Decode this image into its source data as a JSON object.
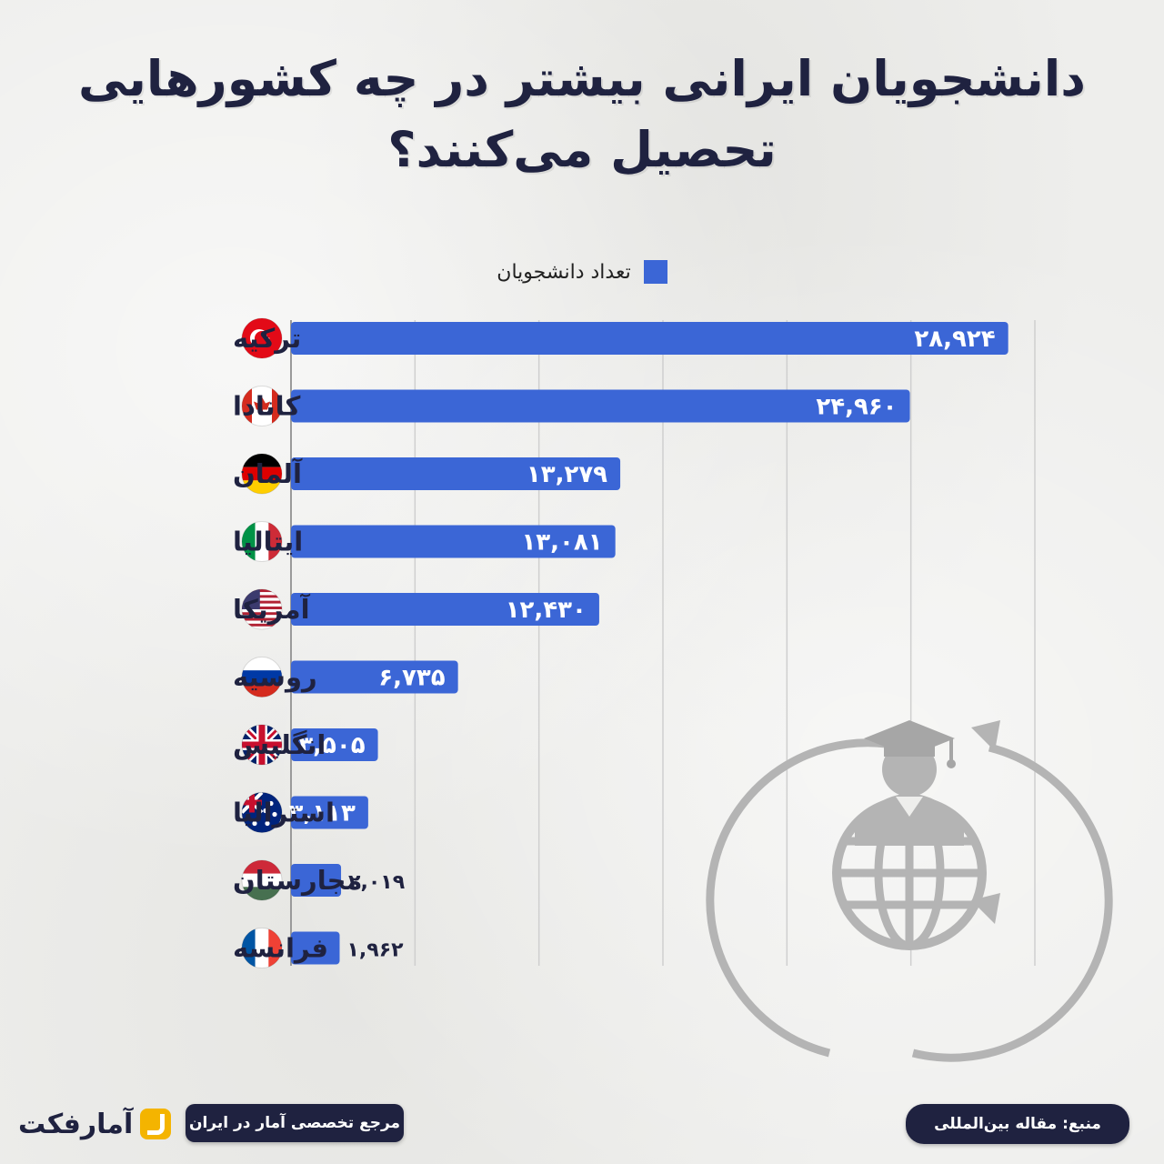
{
  "title_line1": "دانشجویان ایرانی بیشتر در چه کشورهایی",
  "title_line2": "تحصیل می‌کنند؟",
  "legend_label": "تعداد دانشجویان",
  "bar_color": "#3b66d6",
  "chart_data": {
    "type": "bar",
    "orientation": "horizontal",
    "title": "دانشجویان ایرانی بیشتر در چه کشورهایی تحصیل می‌کنند؟",
    "series_name": "تعداد دانشجویان",
    "xlim": [
      0,
      30000
    ],
    "grid": true,
    "legend_position": "top-center",
    "categories": [
      {
        "name": "ترکیه",
        "value": 28924,
        "label": "۲۸,۹۲۴",
        "flag": "turkey"
      },
      {
        "name": "کانادا",
        "value": 24960,
        "label": "۲۴,۹۶۰",
        "flag": "canada"
      },
      {
        "name": "آلمان",
        "value": 13279,
        "label": "۱۳,۲۷۹",
        "flag": "germany"
      },
      {
        "name": "ایتالیا",
        "value": 13081,
        "label": "۱۳,۰۸۱",
        "flag": "italy"
      },
      {
        "name": "آمریکا",
        "value": 12430,
        "label": "۱۲,۴۳۰",
        "flag": "usa"
      },
      {
        "name": "روسیه",
        "value": 6735,
        "label": "۶,۷۳۵",
        "flag": "russia"
      },
      {
        "name": "انگلیس",
        "value": 3505,
        "label": "۳,۵۰۵",
        "flag": "uk"
      },
      {
        "name": "استرالیا",
        "value": 3113,
        "label": "۳,۱۱۳",
        "flag": "australia"
      },
      {
        "name": "مجارستان",
        "value": 2019,
        "label": "۲,۰۱۹",
        "flag": "hungary"
      },
      {
        "name": "فرانسه",
        "value": 1962,
        "label": "۱,۹۶۲",
        "flag": "france"
      }
    ]
  },
  "footer": {
    "brand": "آمارفکت",
    "tagline": "مرجع تخصصی آمار در ایران",
    "source": "منبع: مقاله بین‌المللی"
  },
  "illustration_icon": "graduate-globe-icon"
}
